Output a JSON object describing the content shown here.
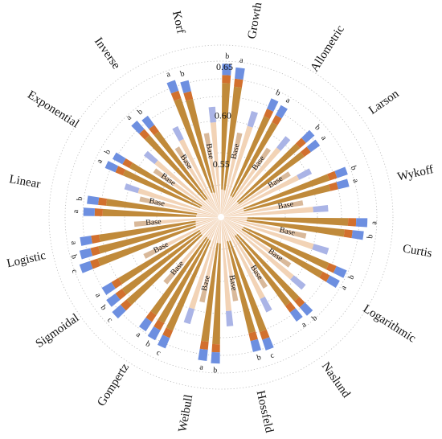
{
  "chart_data": {
    "type": "radial-bar",
    "title": "",
    "r_ticks": [
      0.55,
      0.6,
      0.65
    ],
    "r_tick_labels": [
      "0.55",
      "0.60",
      "0.65"
    ],
    "r_range": [
      0.5,
      0.66
    ],
    "grid": true,
    "layer_colors": [
      "#f2d3b6",
      "#c08a3a",
      "#d2702e",
      "#6d8fe0"
    ],
    "base_colors": [
      "#f2d3b6",
      "#aab4e6"
    ],
    "groups": [
      {
        "name": "Growth",
        "bars": [
          {
            "label": "b",
            "value": 0.654
          },
          {
            "label": "a",
            "value": 0.651
          },
          {
            "label": "Base",
            "value": 0.585
          },
          {
            "label": "",
            "value": 0.61
          }
        ]
      },
      {
        "name": "Allometric",
        "bars": [
          {
            "label": "b",
            "value": 0.629
          },
          {
            "label": "a",
            "value": 0.627
          },
          {
            "label": "Base",
            "value": 0.582
          },
          {
            "label": "",
            "value": 0.603
          }
        ]
      },
      {
        "name": "Larson",
        "bars": [
          {
            "label": "b",
            "value": 0.624
          },
          {
            "label": "a",
            "value": 0.622
          },
          {
            "label": "Base",
            "value": 0.58
          },
          {
            "label": "",
            "value": 0.6
          }
        ]
      },
      {
        "name": "Wykoff",
        "bars": [
          {
            "label": "b",
            "value": 0.634
          },
          {
            "label": "a",
            "value": 0.632
          },
          {
            "label": "Base",
            "value": 0.582
          },
          {
            "label": "",
            "value": 0.607
          }
        ]
      },
      {
        "name": "Curtis",
        "bars": [
          {
            "label": "a",
            "value": 0.647
          },
          {
            "label": "b",
            "value": 0.644
          },
          {
            "label": "Base",
            "value": 0.586
          },
          {
            "label": "",
            "value": 0.612
          }
        ]
      },
      {
        "name": "Logarithmic",
        "bars": [
          {
            "label": "b",
            "value": 0.637
          },
          {
            "label": "a",
            "value": 0.635
          },
          {
            "label": "Base",
            "value": 0.583
          },
          {
            "label": "",
            "value": 0.608
          }
        ]
      },
      {
        "name": "Naslund",
        "bars": [
          {
            "label": "b",
            "value": 0.631
          },
          {
            "label": "a",
            "value": 0.629
          },
          {
            "label": "Base",
            "value": 0.582
          },
          {
            "label": "",
            "value": 0.605
          }
        ]
      },
      {
        "name": "Hossfeld",
        "bars": [
          {
            "label": "c",
            "value": 0.641
          },
          {
            "label": "b",
            "value": 0.639
          },
          {
            "label": "Base",
            "value": 0.584
          },
          {
            "label": "",
            "value": 0.609
          }
        ]
      },
      {
        "name": "Weibull",
        "bars": [
          {
            "label": "b",
            "value": 0.647
          },
          {
            "label": "a",
            "value": 0.645
          },
          {
            "label": "Base",
            "value": 0.586
          },
          {
            "label": "",
            "value": 0.611
          }
        ]
      },
      {
        "name": "Gompertz",
        "bars": [
          {
            "label": "c",
            "value": 0.643
          },
          {
            "label": "b",
            "value": 0.64
          },
          {
            "label": "a",
            "value": 0.637
          },
          {
            "label": "Base",
            "value": 0.585
          }
        ]
      },
      {
        "name": "Sigmoidal",
        "bars": [
          {
            "label": "c",
            "value": 0.645
          },
          {
            "label": "b",
            "value": 0.642
          },
          {
            "label": "a",
            "value": 0.639
          },
          {
            "label": "Base",
            "value": 0.585
          }
        ]
      },
      {
        "name": "Logistic",
        "bars": [
          {
            "label": "c",
            "value": 0.65
          },
          {
            "label": "b",
            "value": 0.646
          },
          {
            "label": "a",
            "value": 0.643
          },
          {
            "label": "Base",
            "value": 0.586
          }
        ]
      },
      {
        "name": "Linear",
        "bars": [
          {
            "label": "a",
            "value": 0.638
          },
          {
            "label": "b",
            "value": 0.635
          },
          {
            "label": "Base",
            "value": 0.582
          },
          {
            "label": "",
            "value": 0.6
          }
        ]
      },
      {
        "name": "Exponential",
        "bars": [
          {
            "label": "a",
            "value": 0.626
          },
          {
            "label": "b",
            "value": 0.623
          },
          {
            "label": "Base",
            "value": 0.58
          },
          {
            "label": "",
            "value": 0.598
          }
        ]
      },
      {
        "name": "Inverse",
        "bars": [
          {
            "label": "a",
            "value": 0.628
          },
          {
            "label": "b",
            "value": 0.625
          },
          {
            "label": "Base",
            "value": 0.581
          },
          {
            "label": "",
            "value": 0.6
          }
        ]
      },
      {
        "name": "Korf",
        "bars": [
          {
            "label": "a",
            "value": 0.645
          },
          {
            "label": "b",
            "value": 0.641
          },
          {
            "label": "Base",
            "value": 0.584
          },
          {
            "label": "",
            "value": 0.61
          }
        ]
      }
    ]
  }
}
